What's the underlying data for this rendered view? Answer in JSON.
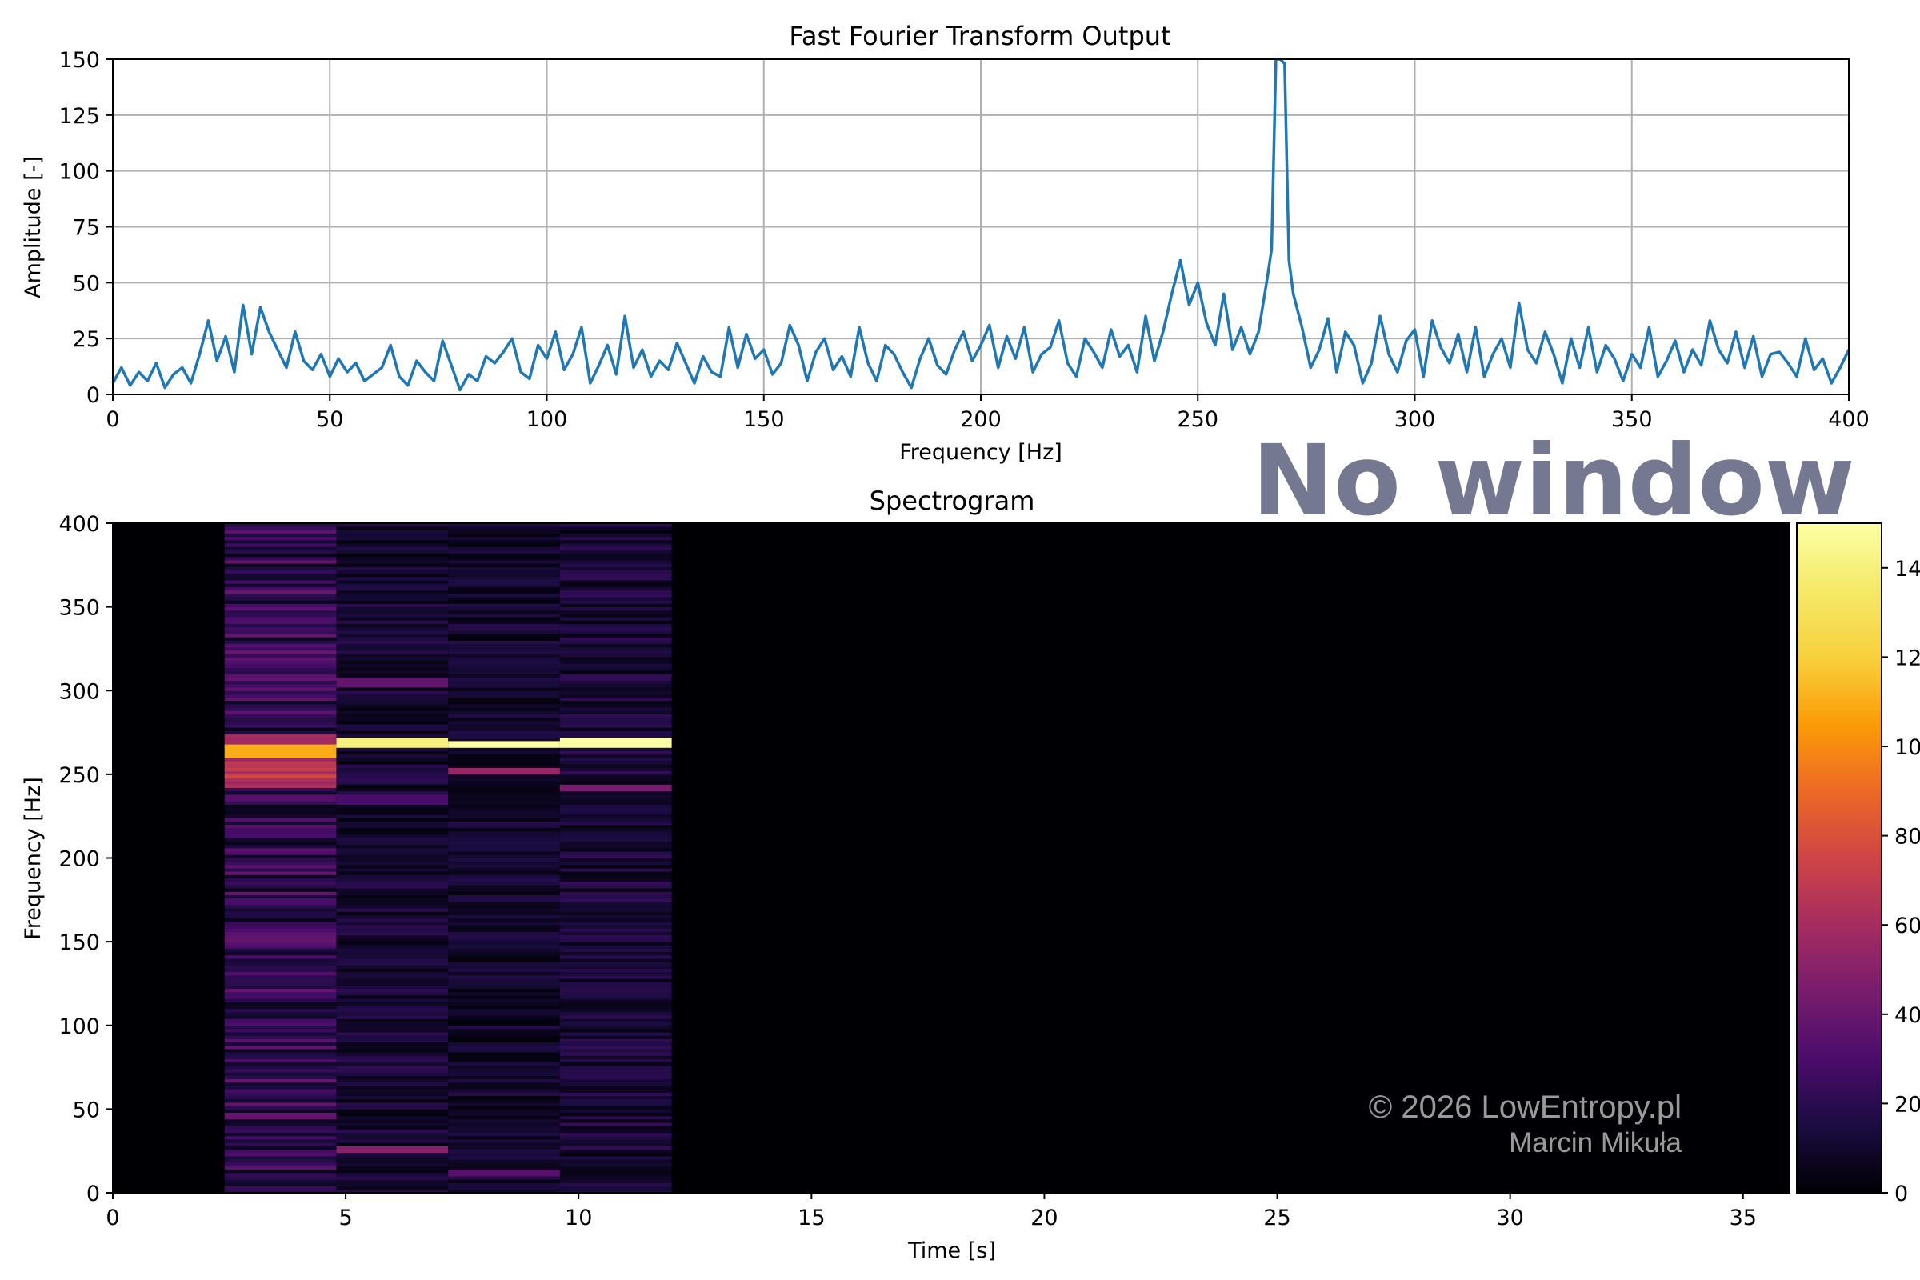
{
  "overlay_label": "No window",
  "watermark": {
    "line1": "© 2026 LowEntropy.pl",
    "line2": "Marcin Mikuła"
  },
  "colors": {
    "line": "#1f77b4",
    "grid": "#b0b0b0",
    "colormap": "inferno"
  },
  "chart_data": [
    {
      "type": "line",
      "title": "Fast Fourier Transform Output",
      "xlabel": "Frequency [Hz]",
      "ylabel": "Amplitude [-]",
      "xlim": [
        0,
        400
      ],
      "ylim": [
        0,
        150
      ],
      "xticks": [
        "0",
        "50",
        "100",
        "150",
        "200",
        "250",
        "300",
        "350",
        "400"
      ],
      "yticks": [
        "0",
        "25",
        "50",
        "75",
        "100",
        "125",
        "150"
      ],
      "grid": true,
      "series": [
        {
          "x": [
            0,
            2,
            4,
            6,
            8,
            10,
            12,
            14,
            16,
            18,
            20,
            22,
            24,
            26,
            28,
            30,
            32,
            34,
            36,
            38,
            40,
            42,
            44,
            46,
            48,
            50,
            52,
            54,
            56,
            58,
            60,
            62,
            64,
            66,
            68,
            70,
            72,
            74,
            76,
            78,
            80,
            82,
            84,
            86,
            88,
            90,
            92,
            94,
            96,
            98,
            100,
            102,
            104,
            106,
            108,
            110,
            112,
            114,
            116,
            118,
            120,
            122,
            124,
            126,
            128,
            130,
            132,
            134,
            136,
            138,
            140,
            142,
            144,
            146,
            148,
            150,
            152,
            154,
            156,
            158,
            160,
            162,
            164,
            166,
            168,
            170,
            172,
            174,
            176,
            178,
            180,
            182,
            184,
            186,
            188,
            190,
            192,
            194,
            196,
            198,
            200,
            202,
            204,
            206,
            208,
            210,
            212,
            214,
            216,
            218,
            220,
            222,
            224,
            226,
            228,
            230,
            232,
            234,
            236,
            238,
            240,
            242,
            244,
            246,
            248,
            250,
            252,
            254,
            256,
            258,
            260,
            262,
            264,
            266,
            267,
            268,
            269,
            270,
            271,
            272,
            274,
            276,
            278,
            280,
            282,
            284,
            286,
            288,
            290,
            292,
            294,
            296,
            298,
            300,
            302,
            304,
            306,
            308,
            310,
            312,
            314,
            316,
            318,
            320,
            322,
            324,
            326,
            328,
            330,
            332,
            334,
            336,
            338,
            340,
            342,
            344,
            346,
            348,
            350,
            352,
            354,
            356,
            358,
            360,
            362,
            364,
            366,
            368,
            370,
            372,
            374,
            376,
            378,
            380,
            382,
            384,
            386,
            388,
            390,
            392,
            394,
            396,
            398,
            400
          ],
          "y": [
            5,
            12,
            4,
            10,
            6,
            14,
            3,
            9,
            12,
            5,
            18,
            33,
            15,
            26,
            10,
            40,
            18,
            39,
            28,
            20,
            12,
            28,
            15,
            11,
            18,
            8,
            16,
            10,
            14,
            6,
            9,
            12,
            22,
            8,
            4,
            15,
            10,
            6,
            24,
            13,
            2,
            9,
            6,
            17,
            14,
            19,
            25,
            10,
            7,
            22,
            16,
            28,
            11,
            18,
            30,
            5,
            13,
            22,
            9,
            35,
            12,
            20,
            8,
            15,
            11,
            23,
            14,
            5,
            17,
            10,
            8,
            30,
            12,
            27,
            16,
            20,
            9,
            14,
            31,
            22,
            6,
            19,
            25,
            11,
            17,
            8,
            30,
            14,
            6,
            22,
            18,
            10,
            3,
            16,
            25,
            13,
            9,
            20,
            28,
            15,
            22,
            31,
            12,
            26,
            16,
            30,
            10,
            18,
            21,
            33,
            14,
            8,
            25,
            19,
            12,
            29,
            17,
            22,
            10,
            35,
            15,
            28,
            45,
            60,
            40,
            50,
            32,
            22,
            45,
            20,
            30,
            18,
            28,
            52,
            65,
            150,
            150,
            148,
            60,
            45,
            30,
            12,
            20,
            34,
            10,
            28,
            22,
            5,
            14,
            35,
            18,
            10,
            24,
            29,
            8,
            33,
            21,
            14,
            27,
            10,
            30,
            8,
            18,
            25,
            12,
            41,
            20,
            14,
            28,
            18,
            5,
            25,
            12,
            30,
            10,
            22,
            16,
            6,
            18,
            12,
            30,
            8,
            15,
            24,
            10,
            20,
            13,
            33,
            20,
            14,
            28,
            12,
            26,
            8,
            18,
            19,
            14,
            8,
            25,
            11,
            16,
            5,
            12,
            20
          ]
        }
      ]
    },
    {
      "type": "heatmap",
      "title": "Spectrogram",
      "xlabel": "Time [s]",
      "ylabel": "Frequency [Hz]",
      "xlim": [
        0,
        36
      ],
      "ylim": [
        0,
        400
      ],
      "xticks": [
        "0",
        "5",
        "10",
        "15",
        "20",
        "25",
        "30",
        "35"
      ],
      "yticks": [
        "0",
        "50",
        "100",
        "150",
        "200",
        "250",
        "300",
        "350",
        "400"
      ],
      "colorbar": {
        "colormap": "inferno",
        "range": [
          0,
          150
        ],
        "ticks": [
          "0",
          "20",
          "40",
          "60",
          "80",
          "100",
          "120",
          "140"
        ]
      },
      "segments": [
        {
          "t_start": 0,
          "t_end": 2.4,
          "mean": 0,
          "peaks": []
        },
        {
          "t_start": 2.4,
          "t_end": 4.8,
          "mean": 22,
          "peaks": [
            {
              "freq": 258,
              "value": 75,
              "width": 30
            },
            {
              "freq": 264,
              "value": 110,
              "width": 6
            }
          ]
        },
        {
          "t_start": 4.8,
          "t_end": 7.2,
          "mean": 12,
          "peaks": [
            {
              "freq": 269,
              "value": 140,
              "width": 2
            },
            {
              "freq": 26,
              "value": 50,
              "width": 2
            },
            {
              "freq": 305,
              "value": 38,
              "width": 2
            },
            {
              "freq": 235,
              "value": 30,
              "width": 4
            }
          ]
        },
        {
          "t_start": 7.2,
          "t_end": 9.6,
          "mean": 10,
          "peaks": [
            {
              "freq": 268,
              "value": 150,
              "width": 2
            },
            {
              "freq": 252,
              "value": 55,
              "width": 3
            },
            {
              "freq": 12,
              "value": 35,
              "width": 2
            }
          ]
        },
        {
          "t_start": 9.6,
          "t_end": 12.0,
          "mean": 13,
          "peaks": [
            {
              "freq": 269,
              "value": 150,
              "width": 2
            },
            {
              "freq": 242,
              "value": 45,
              "width": 2
            }
          ]
        },
        {
          "t_start": 12.0,
          "t_end": 36,
          "mean": 0,
          "peaks": []
        }
      ]
    }
  ]
}
